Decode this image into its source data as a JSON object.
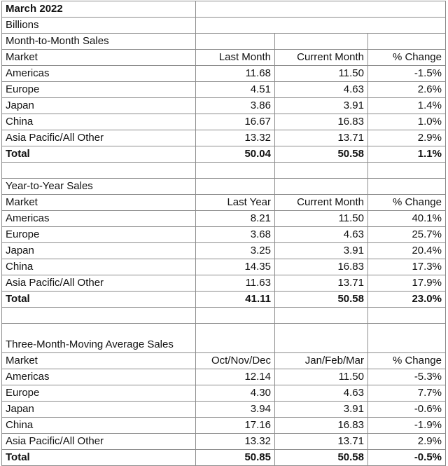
{
  "title": "March 2022",
  "unit": "Billions",
  "sections": [
    {
      "heading": "Month-to-Month Sales",
      "columns": [
        "Market",
        "Last Month",
        "Current Month",
        "% Change"
      ],
      "rows": [
        [
          "Americas",
          "11.68",
          "11.50",
          "-1.5%"
        ],
        [
          "Europe",
          "4.51",
          "4.63",
          "2.6%"
        ],
        [
          "Japan",
          "3.86",
          "3.91",
          "1.4%"
        ],
        [
          "China",
          "16.67",
          "16.83",
          "1.0%"
        ],
        [
          "Asia Pacific/All Other",
          "13.32",
          "13.71",
          "2.9%"
        ]
      ],
      "total": [
        "Total",
        "50.04",
        "50.58",
        "1.1%"
      ]
    },
    {
      "heading": "Year-to-Year Sales",
      "columns": [
        "Market",
        "Last Year",
        "Current Month",
        "% Change"
      ],
      "rows": [
        [
          "Americas",
          "8.21",
          "11.50",
          "40.1%"
        ],
        [
          "Europe",
          "3.68",
          "4.63",
          "25.7%"
        ],
        [
          "Japan",
          "3.25",
          "3.91",
          "20.4%"
        ],
        [
          "China",
          "14.35",
          "16.83",
          "17.3%"
        ],
        [
          "Asia Pacific/All Other",
          "11.63",
          "13.71",
          "17.9%"
        ]
      ],
      "total": [
        "Total",
        "41.11",
        "50.58",
        "23.0%"
      ]
    },
    {
      "heading": "Three-Month-Moving Average Sales",
      "columns": [
        "Market",
        "Oct/Nov/Dec",
        "Jan/Feb/Mar",
        "% Change"
      ],
      "rows": [
        [
          "Americas",
          "12.14",
          "11.50",
          "-5.3%"
        ],
        [
          "Europe",
          "4.30",
          "4.63",
          "7.7%"
        ],
        [
          "Japan",
          "3.94",
          "3.91",
          "-0.6%"
        ],
        [
          "China",
          "17.16",
          "16.83",
          "-1.9%"
        ],
        [
          "Asia Pacific/All Other",
          "13.32",
          "13.71",
          "2.9%"
        ]
      ],
      "total": [
        "Total",
        "50.85",
        "50.58",
        "-0.5%"
      ]
    }
  ]
}
